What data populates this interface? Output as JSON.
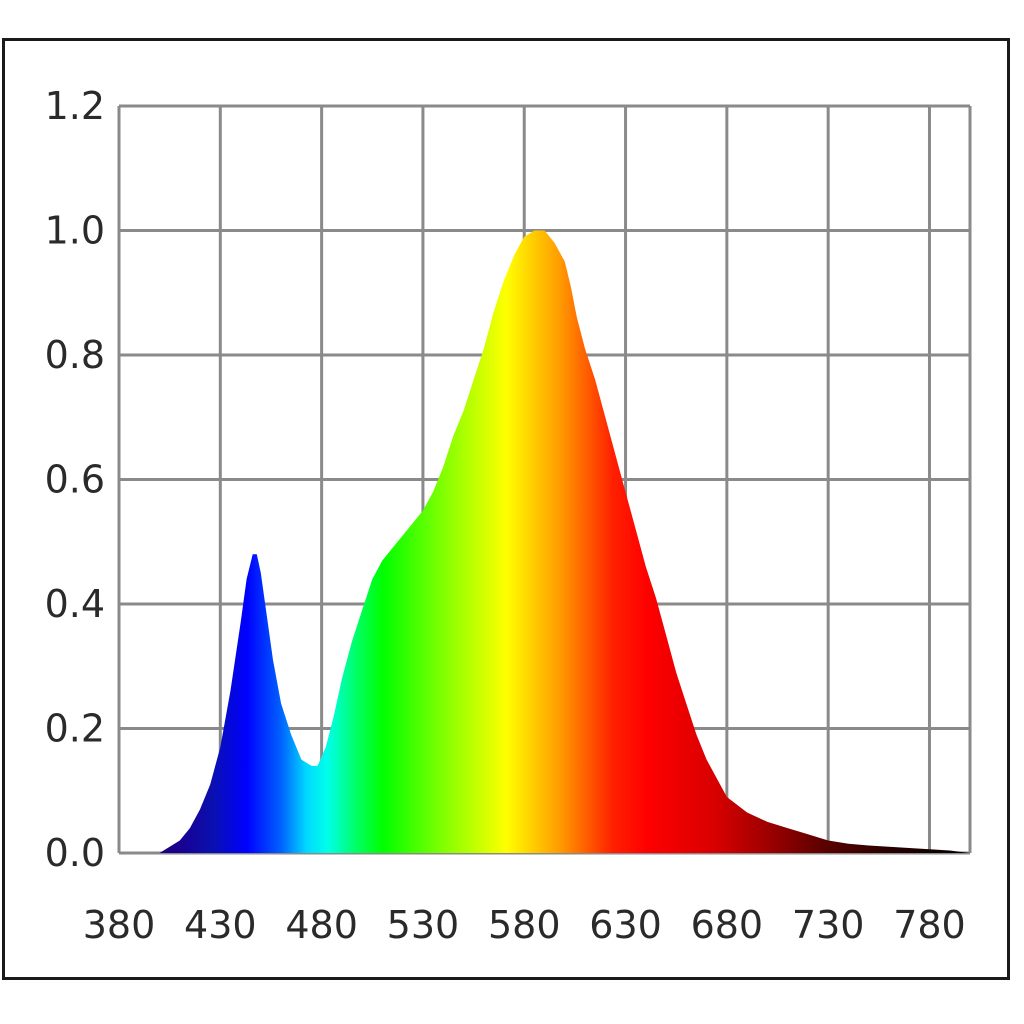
{
  "chart_data": {
    "type": "area",
    "title": "",
    "xlabel": "",
    "ylabel": "",
    "xlim": [
      380,
      800
    ],
    "ylim": [
      0,
      1.2
    ],
    "grid": true,
    "legend": "none",
    "x_ticks": [
      "380",
      "430",
      "480",
      "530",
      "580",
      "630",
      "680",
      "730",
      "780"
    ],
    "y_ticks": [
      "0.0",
      "0.2",
      "0.4",
      "0.6",
      "0.8",
      "1.0",
      "1.2"
    ],
    "fill": "visible-spectrum gradient (violet-blue to red to black)",
    "series": [
      {
        "x": [
          380,
          400,
          405,
          410,
          415,
          420,
          425,
          430,
          435,
          440,
          443,
          446,
          448,
          450,
          453,
          456,
          460,
          465,
          470,
          475,
          478,
          482,
          486,
          490,
          495,
          500,
          505,
          510,
          515,
          520,
          525,
          530,
          535,
          540,
          545,
          550,
          555,
          560,
          565,
          570,
          575,
          580,
          585,
          590,
          595,
          600,
          603,
          606,
          610,
          615,
          620,
          625,
          630,
          635,
          640,
          645,
          650,
          655,
          660,
          665,
          670,
          675,
          680,
          690,
          700,
          710,
          720,
          730,
          740,
          750,
          760,
          770,
          780,
          790,
          800
        ],
        "values": [
          0.0,
          0.0,
          0.01,
          0.02,
          0.04,
          0.07,
          0.11,
          0.17,
          0.26,
          0.37,
          0.44,
          0.48,
          0.48,
          0.45,
          0.38,
          0.31,
          0.24,
          0.19,
          0.15,
          0.14,
          0.14,
          0.17,
          0.22,
          0.28,
          0.34,
          0.39,
          0.44,
          0.47,
          0.49,
          0.51,
          0.53,
          0.55,
          0.58,
          0.62,
          0.67,
          0.71,
          0.76,
          0.81,
          0.87,
          0.92,
          0.96,
          0.99,
          1.0,
          1.0,
          0.98,
          0.95,
          0.91,
          0.86,
          0.81,
          0.76,
          0.7,
          0.64,
          0.58,
          0.52,
          0.46,
          0.41,
          0.35,
          0.29,
          0.24,
          0.19,
          0.15,
          0.12,
          0.09,
          0.065,
          0.05,
          0.04,
          0.03,
          0.02,
          0.015,
          0.012,
          0.01,
          0.008,
          0.006,
          0.004,
          0.0
        ]
      }
    ]
  }
}
